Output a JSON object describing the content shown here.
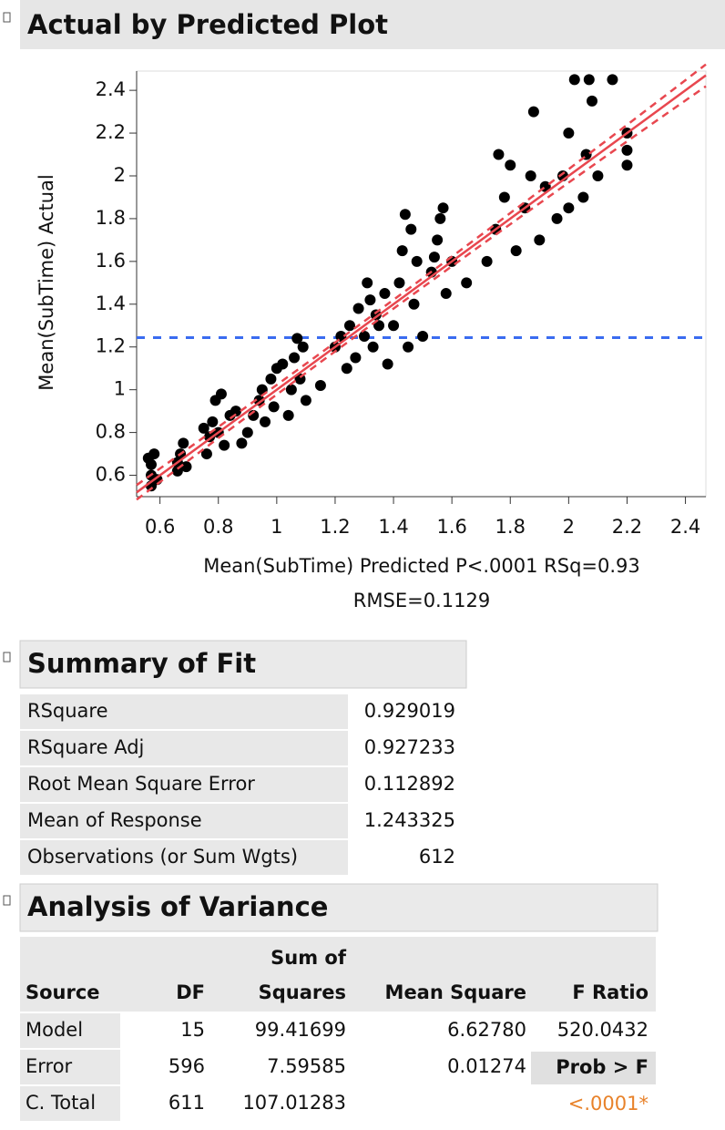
{
  "chart_data": {
    "type": "scatter",
    "title": "Actual by Predicted Plot",
    "y_label": "Mean(SubTime) Actual",
    "x_label": "Mean(SubTime) Predicted P<.0001 RSq=0.93",
    "x_label_line2": "RMSE=0.1129",
    "color": "#000000",
    "fit_color": "#e8474f",
    "mean_color": "#3a6cf0",
    "mean_line": 1.243325,
    "xlim": [
      0.52,
      2.47
    ],
    "ylim": [
      0.5,
      2.49
    ],
    "xticks": [
      0.6,
      0.8,
      1,
      1.2,
      1.4,
      1.6,
      1.8,
      2,
      2.2,
      2.4
    ],
    "yticks": [
      0.6,
      0.8,
      1,
      1.2,
      1.4,
      1.6,
      1.8,
      2,
      2.2,
      2.4
    ],
    "x": [
      0.57,
      0.57,
      0.57,
      0.58,
      0.59,
      0.56,
      0.66,
      0.67,
      0.68,
      0.66,
      0.69,
      0.76,
      0.77,
      0.78,
      0.79,
      0.8,
      0.82,
      0.84,
      0.86,
      0.75,
      0.81,
      0.9,
      0.92,
      0.94,
      0.95,
      0.96,
      0.98,
      1.0,
      0.88,
      0.99,
      1.04,
      1.05,
      1.06,
      1.07,
      1.08,
      1.1,
      1.09,
      1.02,
      1.15,
      1.2,
      1.22,
      1.25,
      1.27,
      1.28,
      1.3,
      1.32,
      1.33,
      1.35,
      1.37,
      1.38,
      1.31,
      1.24,
      1.34,
      1.4,
      1.42,
      1.43,
      1.44,
      1.45,
      1.47,
      1.48,
      1.5,
      1.46,
      1.53,
      1.55,
      1.56,
      1.57,
      1.58,
      1.6,
      1.65,
      1.54,
      1.72,
      1.75,
      1.78,
      1.8,
      1.82,
      1.85,
      1.87,
      1.88,
      1.9,
      1.92,
      1.76,
      1.96,
      1.98,
      2.0,
      2.02,
      2.05,
      2.06,
      2.08,
      2.1,
      2.07,
      2.15,
      2.0,
      2.2,
      2.2,
      2.2
    ],
    "values": [
      0.55,
      0.6,
      0.65,
      0.7,
      0.58,
      0.68,
      0.62,
      0.7,
      0.75,
      0.66,
      0.64,
      0.7,
      0.78,
      0.85,
      0.95,
      0.8,
      0.74,
      0.88,
      0.9,
      0.82,
      0.98,
      0.8,
      0.88,
      0.95,
      1.0,
      0.85,
      1.05,
      1.1,
      0.75,
      0.92,
      0.88,
      1.0,
      1.15,
      1.24,
      1.05,
      0.95,
      1.2,
      1.12,
      1.02,
      1.2,
      1.25,
      1.3,
      1.15,
      1.38,
      1.25,
      1.42,
      1.2,
      1.3,
      1.45,
      1.12,
      1.5,
      1.1,
      1.35,
      1.3,
      1.5,
      1.65,
      1.82,
      1.2,
      1.4,
      1.6,
      1.25,
      1.75,
      1.55,
      1.7,
      1.8,
      1.85,
      1.45,
      1.6,
      1.5,
      1.62,
      1.6,
      1.75,
      1.9,
      2.05,
      1.65,
      1.85,
      2.0,
      2.3,
      1.7,
      1.95,
      2.1,
      1.8,
      2.0,
      2.2,
      2.45,
      1.9,
      2.1,
      2.35,
      2.0,
      2.45,
      2.45,
      1.85,
      2.05,
      2.12,
      2.2
    ]
  },
  "summary_of_fit": {
    "title": "Summary of Fit",
    "rows": [
      [
        "RSquare",
        "0.929019"
      ],
      [
        "RSquare Adj",
        "0.927233"
      ],
      [
        "Root Mean Square Error",
        "0.112892"
      ],
      [
        "Mean of Response",
        "1.243325"
      ],
      [
        "Observations (or Sum Wgts)",
        "612"
      ]
    ]
  },
  "analysis_of_variance": {
    "title": "Analysis of Variance",
    "header": {
      "source": "Source",
      "df": "DF",
      "ss_line1": "Sum of",
      "ss_line2": "Squares",
      "ms": "Mean Square",
      "f": "F Ratio"
    },
    "rows": [
      [
        "Model",
        "15",
        "99.41699",
        "6.62780",
        "520.0432"
      ],
      [
        "Error",
        "596",
        "7.59585",
        "0.01274"
      ],
      [
        "C. Total",
        "611",
        "107.01283"
      ]
    ],
    "prob_label": "Prob > F",
    "prob_value": "<.0001*"
  }
}
